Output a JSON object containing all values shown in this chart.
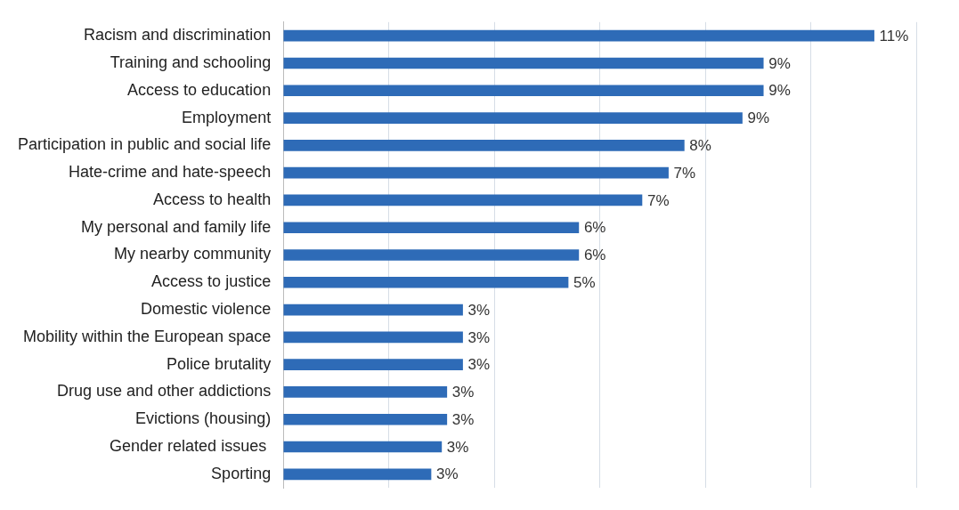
{
  "chart_data": {
    "type": "bar",
    "orientation": "horizontal",
    "categories": [
      "Racism and discrimination",
      "Training and schooling",
      "Access to education",
      "Employment",
      "Participation in public and social life",
      "Hate-crime and hate-speech",
      "Access to health",
      "My personal and family life",
      "My nearby community",
      "Access to justice",
      "Domestic violence",
      "Mobility within the European space",
      "Police brutality",
      "Drug use and other addictions",
      "Evictions (housing)",
      "Gender related issues ",
      "Sporting"
    ],
    "values": [
      11.2,
      9.1,
      9.1,
      8.7,
      7.6,
      7.3,
      6.8,
      5.6,
      5.6,
      5.4,
      3.4,
      3.4,
      3.4,
      3.1,
      3.1,
      3.0,
      2.8
    ],
    "value_labels": [
      "11%",
      "9%",
      "9%",
      "9%",
      "8%",
      "7%",
      "7%",
      "6%",
      "6%",
      "5%",
      "3%",
      "3%",
      "3%",
      "3%",
      "3%",
      "3%",
      "3%"
    ],
    "color": "#2e6bb7",
    "xlim": [
      0,
      12
    ],
    "xticks": [
      {
        "value": 0,
        "label": null
      },
      {
        "value": 2,
        "label": null
      },
      {
        "value": 4,
        "label": null
      },
      {
        "value": 6,
        "label": null
      },
      {
        "value": 8,
        "label": null
      },
      {
        "value": 10,
        "label": null
      },
      {
        "value": 12,
        "label": null
      }
    ],
    "grid": "x",
    "tick_labels": "y",
    "legend": false
  }
}
